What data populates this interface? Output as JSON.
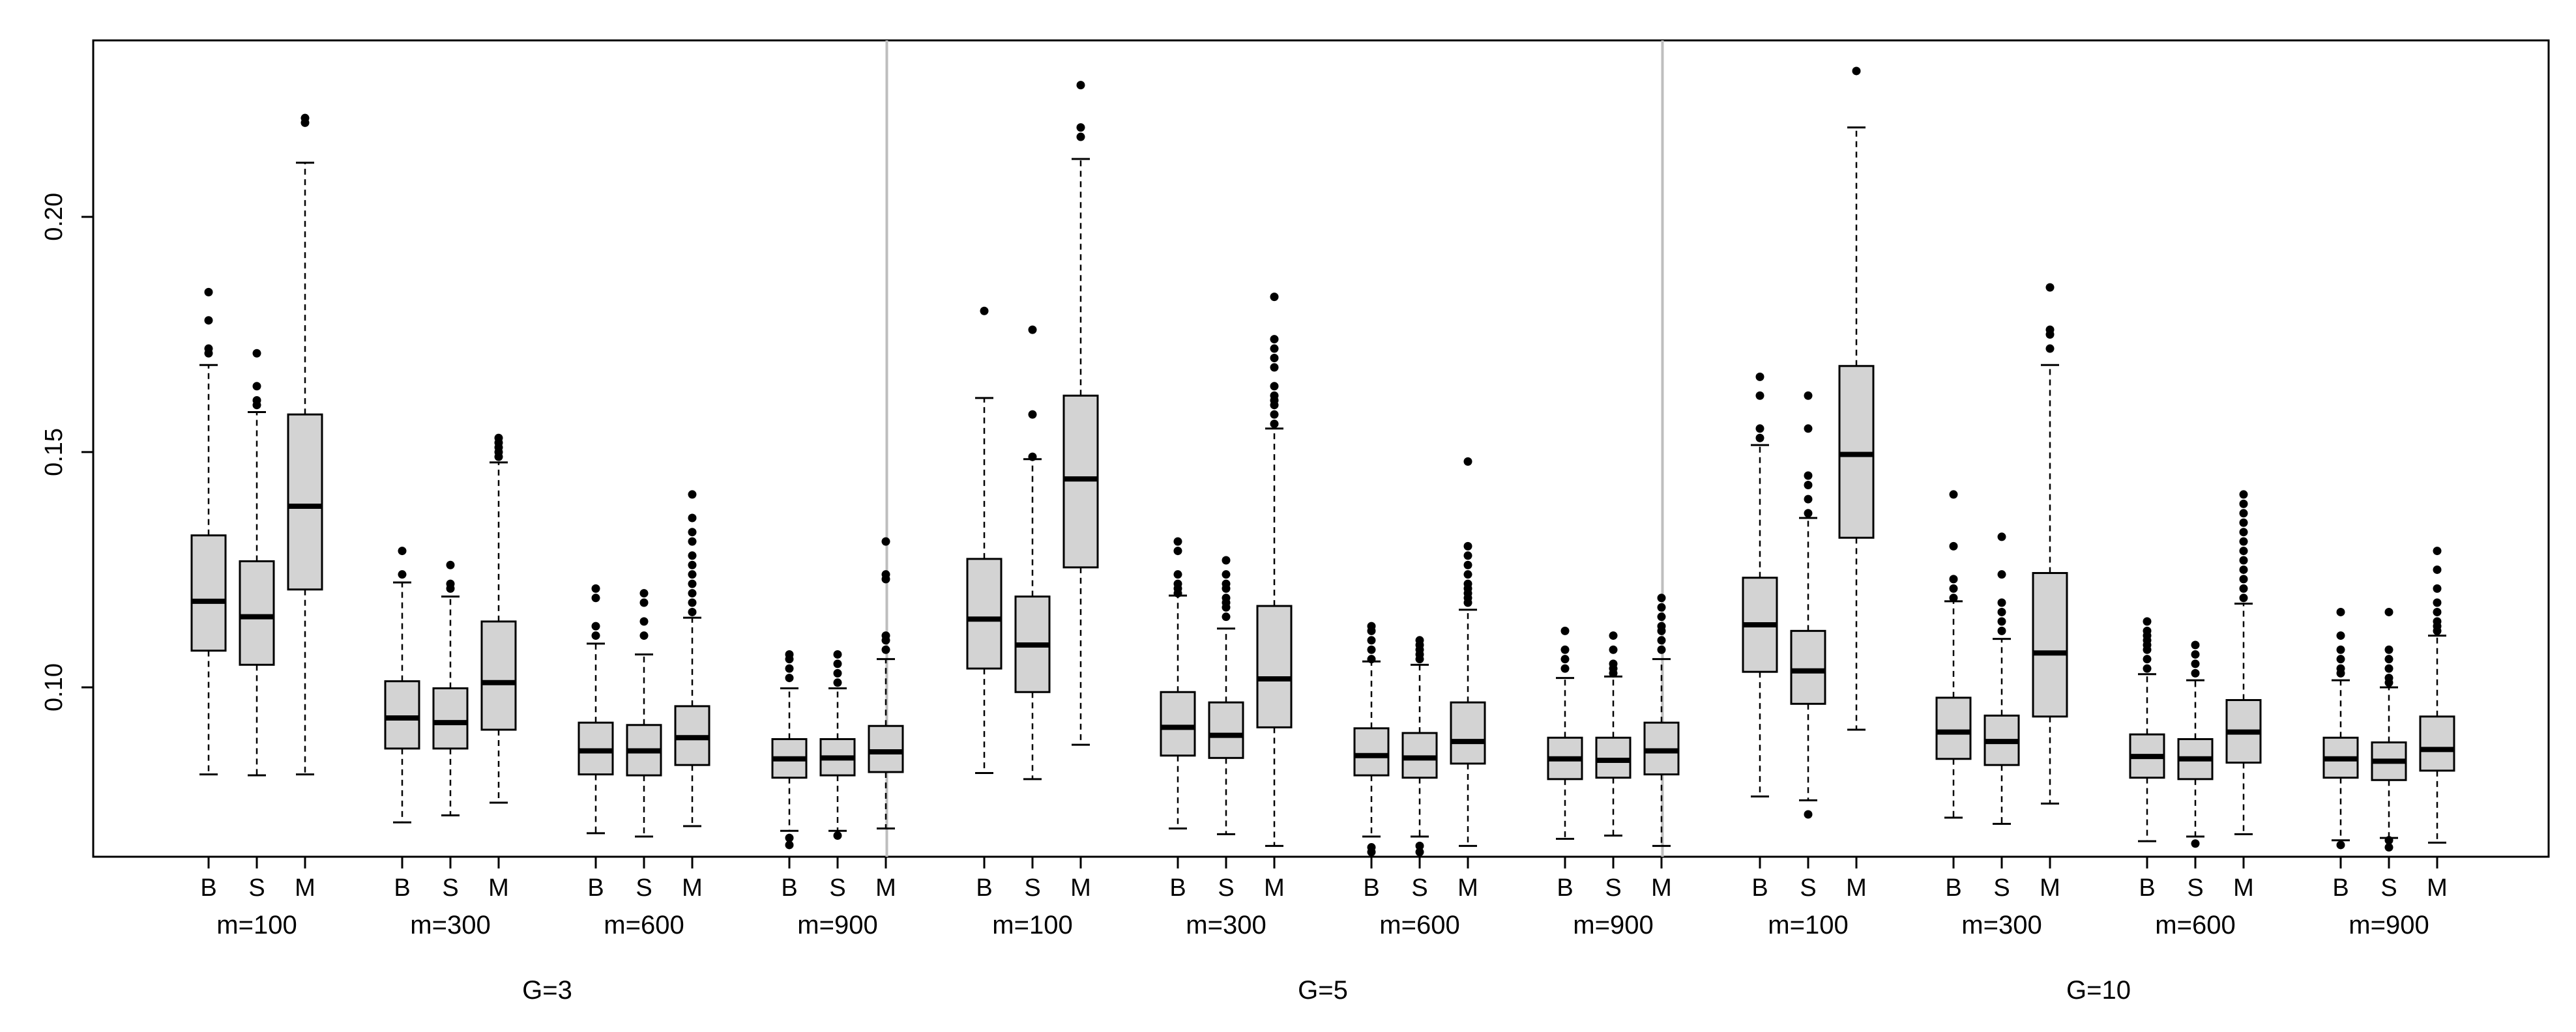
{
  "chart_data": {
    "type": "boxplot",
    "title": "",
    "xlabel": "",
    "ylabel": "",
    "ylim": [
      0.064,
      0.2375
    ],
    "yticks": [
      0.1,
      0.15,
      0.2
    ],
    "ytick_labels": [
      "0.10",
      "0.15",
      "0.20"
    ],
    "method_labels": [
      "B",
      "S",
      "M"
    ],
    "separators": "vertical gray lines between G panels",
    "panels": [
      {
        "label": "G=3",
        "groups": [
          {
            "label": "m=100",
            "boxes": [
              {
                "method": "B",
                "min": 0.0815,
                "q1": 0.1078,
                "median": 0.1183,
                "q3": 0.1323,
                "max": 0.1685,
                "outliers": [
                  0.171,
                  0.172,
                  0.178,
                  0.184
                ]
              },
              {
                "method": "S",
                "min": 0.0813,
                "q1": 0.1048,
                "median": 0.115,
                "q3": 0.1268,
                "max": 0.1585,
                "outliers": [
                  0.16,
                  0.161,
                  0.164,
                  0.171
                ]
              },
              {
                "method": "M",
                "min": 0.0815,
                "q1": 0.1208,
                "median": 0.1385,
                "q3": 0.158,
                "max": 0.2115,
                "outliers": [
                  0.22,
                  0.221
                ]
              }
            ]
          },
          {
            "label": "m=300",
            "boxes": [
              {
                "method": "B",
                "min": 0.0713,
                "q1": 0.087,
                "median": 0.0935,
                "q3": 0.1013,
                "max": 0.1223,
                "outliers": [
                  0.124,
                  0.129
                ]
              },
              {
                "method": "S",
                "min": 0.0728,
                "q1": 0.087,
                "median": 0.0925,
                "q3": 0.0998,
                "max": 0.1193,
                "outliers": [
                  0.121,
                  0.122,
                  0.126
                ]
              },
              {
                "method": "M",
                "min": 0.0755,
                "q1": 0.091,
                "median": 0.101,
                "q3": 0.114,
                "max": 0.1478,
                "outliers": [
                  0.149,
                  0.15,
                  0.151,
                  0.152,
                  0.153
                ]
              }
            ]
          },
          {
            "label": "m=600",
            "boxes": [
              {
                "method": "B",
                "min": 0.069,
                "q1": 0.0815,
                "median": 0.0865,
                "q3": 0.0925,
                "max": 0.1093,
                "outliers": [
                  0.111,
                  0.113,
                  0.119,
                  0.121
                ]
              },
              {
                "method": "S",
                "min": 0.0683,
                "q1": 0.0813,
                "median": 0.0865,
                "q3": 0.092,
                "max": 0.107,
                "outliers": [
                  0.111,
                  0.114,
                  0.118,
                  0.12
                ]
              },
              {
                "method": "M",
                "min": 0.0705,
                "q1": 0.0835,
                "median": 0.0893,
                "q3": 0.096,
                "max": 0.1148,
                "outliers": [
                  0.116,
                  0.118,
                  0.12,
                  0.122,
                  0.124,
                  0.126,
                  0.128,
                  0.131,
                  0.133,
                  0.136,
                  0.141
                ]
              }
            ]
          },
          {
            "label": "m=900",
            "boxes": [
              {
                "method": "B",
                "min": 0.0695,
                "q1": 0.0808,
                "median": 0.0848,
                "q3": 0.089,
                "max": 0.0998,
                "outliers": [
                  0.0665,
                  0.068,
                  0.102,
                  0.104,
                  0.106,
                  0.107
                ]
              },
              {
                "method": "S",
                "min": 0.0695,
                "q1": 0.0813,
                "median": 0.085,
                "q3": 0.089,
                "max": 0.0998,
                "outliers": [
                  0.0685,
                  0.101,
                  0.103,
                  0.105,
                  0.107
                ]
              },
              {
                "method": "M",
                "min": 0.07,
                "q1": 0.082,
                "median": 0.0863,
                "q3": 0.0918,
                "max": 0.106,
                "outliers": [
                  0.108,
                  0.11,
                  0.111,
                  0.123,
                  0.124,
                  0.131
                ]
              }
            ]
          }
        ]
      },
      {
        "label": "G=5",
        "groups": [
          {
            "label": "m=100",
            "boxes": [
              {
                "method": "B",
                "min": 0.0818,
                "q1": 0.104,
                "median": 0.1145,
                "q3": 0.1273,
                "max": 0.1615,
                "outliers": [
                  0.18
                ]
              },
              {
                "method": "S",
                "min": 0.0805,
                "q1": 0.099,
                "median": 0.109,
                "q3": 0.1193,
                "max": 0.1485,
                "outliers": [
                  0.149,
                  0.158,
                  0.176
                ]
              },
              {
                "method": "M",
                "min": 0.0878,
                "q1": 0.1255,
                "median": 0.1443,
                "q3": 0.162,
                "max": 0.2123,
                "outliers": [
                  0.217,
                  0.219,
                  0.228
                ]
              }
            ]
          },
          {
            "label": "m=300",
            "boxes": [
              {
                "method": "B",
                "min": 0.07,
                "q1": 0.0855,
                "median": 0.0915,
                "q3": 0.099,
                "max": 0.1195,
                "outliers": [
                  0.12,
                  0.121,
                  0.122,
                  0.124,
                  0.129,
                  0.131
                ]
              },
              {
                "method": "S",
                "min": 0.0688,
                "q1": 0.085,
                "median": 0.0898,
                "q3": 0.0968,
                "max": 0.1125,
                "outliers": [
                  0.115,
                  0.117,
                  0.118,
                  0.119,
                  0.121,
                  0.122,
                  0.124,
                  0.127
                ]
              },
              {
                "method": "M",
                "min": 0.0663,
                "q1": 0.0915,
                "median": 0.1018,
                "q3": 0.1173,
                "max": 0.155,
                "outliers": [
                  0.156,
                  0.158,
                  0.16,
                  0.161,
                  0.162,
                  0.164,
                  0.168,
                  0.17,
                  0.172,
                  0.174,
                  0.183
                ]
              }
            ]
          },
          {
            "label": "m=600",
            "boxes": [
              {
                "method": "B",
                "min": 0.0683,
                "q1": 0.0813,
                "median": 0.0855,
                "q3": 0.0913,
                "max": 0.1055,
                "outliers": [
                  0.065,
                  0.066,
                  0.106,
                  0.108,
                  0.11,
                  0.112,
                  0.113
                ]
              },
              {
                "method": "S",
                "min": 0.0683,
                "q1": 0.0808,
                "median": 0.085,
                "q3": 0.0903,
                "max": 0.1048,
                "outliers": [
                  0.065,
                  0.0663,
                  0.106,
                  0.107,
                  0.108,
                  0.109,
                  0.11
                ]
              },
              {
                "method": "M",
                "min": 0.0663,
                "q1": 0.0838,
                "median": 0.0885,
                "q3": 0.0968,
                "max": 0.1165,
                "outliers": [
                  0.118,
                  0.119,
                  0.12,
                  0.121,
                  0.122,
                  0.124,
                  0.126,
                  0.128,
                  0.13,
                  0.148
                ]
              }
            ]
          },
          {
            "label": "m=900",
            "boxes": [
              {
                "method": "B",
                "min": 0.0678,
                "q1": 0.0805,
                "median": 0.0848,
                "q3": 0.0893,
                "max": 0.102,
                "outliers": [
                  0.104,
                  0.106,
                  0.108,
                  0.112
                ]
              },
              {
                "method": "S",
                "min": 0.0685,
                "q1": 0.0808,
                "median": 0.0845,
                "q3": 0.0893,
                "max": 0.1023,
                "outliers": [
                  0.103,
                  0.104,
                  0.105,
                  0.108,
                  0.111
                ]
              },
              {
                "method": "M",
                "min": 0.0663,
                "q1": 0.0815,
                "median": 0.0865,
                "q3": 0.0925,
                "max": 0.106,
                "outliers": [
                  0.108,
                  0.11,
                  0.112,
                  0.113,
                  0.115,
                  0.117,
                  0.119
                ]
              }
            ]
          }
        ]
      },
      {
        "label": "G=10",
        "groups": [
          {
            "label": "m=100",
            "boxes": [
              {
                "method": "B",
                "min": 0.0768,
                "q1": 0.1033,
                "median": 0.1133,
                "q3": 0.1233,
                "max": 0.1515,
                "outliers": [
                  0.153,
                  0.155,
                  0.162,
                  0.166
                ]
              },
              {
                "method": "S",
                "min": 0.076,
                "q1": 0.0965,
                "median": 0.1035,
                "q3": 0.112,
                "max": 0.136,
                "outliers": [
                  0.073,
                  0.137,
                  0.14,
                  0.143,
                  0.145,
                  0.155,
                  0.162
                ]
              },
              {
                "method": "M",
                "min": 0.091,
                "q1": 0.1318,
                "median": 0.1495,
                "q3": 0.1683,
                "max": 0.219,
                "outliers": [
                  0.231
                ]
              }
            ]
          },
          {
            "label": "m=300",
            "boxes": [
              {
                "method": "B",
                "min": 0.0723,
                "q1": 0.0848,
                "median": 0.0905,
                "q3": 0.0978,
                "max": 0.1183,
                "outliers": [
                  0.119,
                  0.121,
                  0.123,
                  0.13,
                  0.141
                ]
              },
              {
                "method": "S",
                "min": 0.071,
                "q1": 0.0835,
                "median": 0.0885,
                "q3": 0.094,
                "max": 0.1103,
                "outliers": [
                  0.112,
                  0.114,
                  0.116,
                  0.118,
                  0.124,
                  0.132
                ]
              },
              {
                "method": "M",
                "min": 0.0753,
                "q1": 0.0938,
                "median": 0.1073,
                "q3": 0.1243,
                "max": 0.1685,
                "outliers": [
                  0.172,
                  0.175,
                  0.176,
                  0.185
                ]
              }
            ]
          },
          {
            "label": "m=600",
            "boxes": [
              {
                "method": "B",
                "min": 0.0673,
                "q1": 0.0808,
                "median": 0.0853,
                "q3": 0.09,
                "max": 0.1028,
                "outliers": [
                  0.104,
                  0.106,
                  0.108,
                  0.109,
                  0.11,
                  0.111,
                  0.112,
                  0.114
                ]
              },
              {
                "method": "S",
                "min": 0.0683,
                "q1": 0.0805,
                "median": 0.0848,
                "q3": 0.089,
                "max": 0.1015,
                "outliers": [
                  0.0668,
                  0.103,
                  0.105,
                  0.107,
                  0.109
                ]
              },
              {
                "method": "M",
                "min": 0.0688,
                "q1": 0.084,
                "median": 0.0905,
                "q3": 0.0973,
                "max": 0.1178,
                "outliers": [
                  0.119,
                  0.121,
                  0.123,
                  0.125,
                  0.127,
                  0.129,
                  0.131,
                  0.133,
                  0.135,
                  0.137,
                  0.139,
                  0.141
                ]
              }
            ]
          },
          {
            "label": "m=900",
            "boxes": [
              {
                "method": "B",
                "min": 0.0675,
                "q1": 0.0808,
                "median": 0.0848,
                "q3": 0.0893,
                "max": 0.1015,
                "outliers": [
                  0.0665,
                  0.103,
                  0.104,
                  0.106,
                  0.108,
                  0.111,
                  0.116
                ]
              },
              {
                "method": "S",
                "min": 0.068,
                "q1": 0.0803,
                "median": 0.0843,
                "q3": 0.0883,
                "max": 0.1,
                "outliers": [
                  0.066,
                  0.0675,
                  0.101,
                  0.102,
                  0.104,
                  0.106,
                  0.108,
                  0.116
                ]
              },
              {
                "method": "M",
                "min": 0.067,
                "q1": 0.0823,
                "median": 0.0868,
                "q3": 0.0938,
                "max": 0.111,
                "outliers": [
                  0.112,
                  0.113,
                  0.114,
                  0.116,
                  0.118,
                  0.121,
                  0.125,
                  0.129
                ]
              }
            ]
          }
        ]
      }
    ],
    "colors": {
      "box_fill": "#d3d3d3",
      "stroke": "#000000",
      "separator": "#bebebe",
      "background": "#ffffff"
    }
  }
}
